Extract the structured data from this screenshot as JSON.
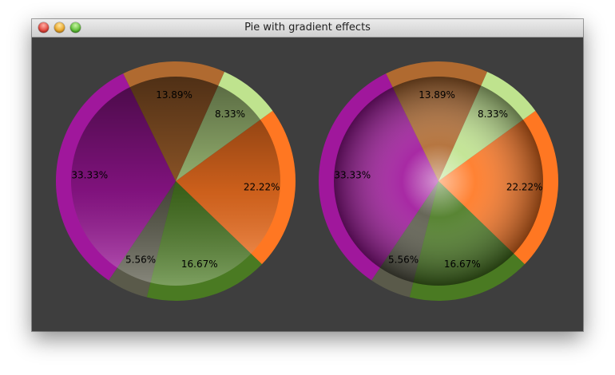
{
  "window": {
    "title": "Pie with gradient effects"
  },
  "chart_data": {
    "type": "pie",
    "slices": [
      {
        "label": "22.22%",
        "value": 22.22,
        "color": "#ff7722"
      },
      {
        "label": "16.67%",
        "value": 16.67,
        "color": "#4a7a22"
      },
      {
        "label": "5.56%",
        "value": 5.56,
        "color": "#5a5a4a"
      },
      {
        "label": "33.33%",
        "value": 33.33,
        "color": "#a0179c"
      },
      {
        "label": "13.89%",
        "value": 13.89,
        "color": "#b06a30"
      },
      {
        "label": "8.33%",
        "value": 8.33,
        "color": "#bfe38e"
      }
    ],
    "start_angle_deg": -36,
    "pies": [
      {
        "gradient": "linear"
      },
      {
        "gradient": "radial"
      }
    ]
  }
}
